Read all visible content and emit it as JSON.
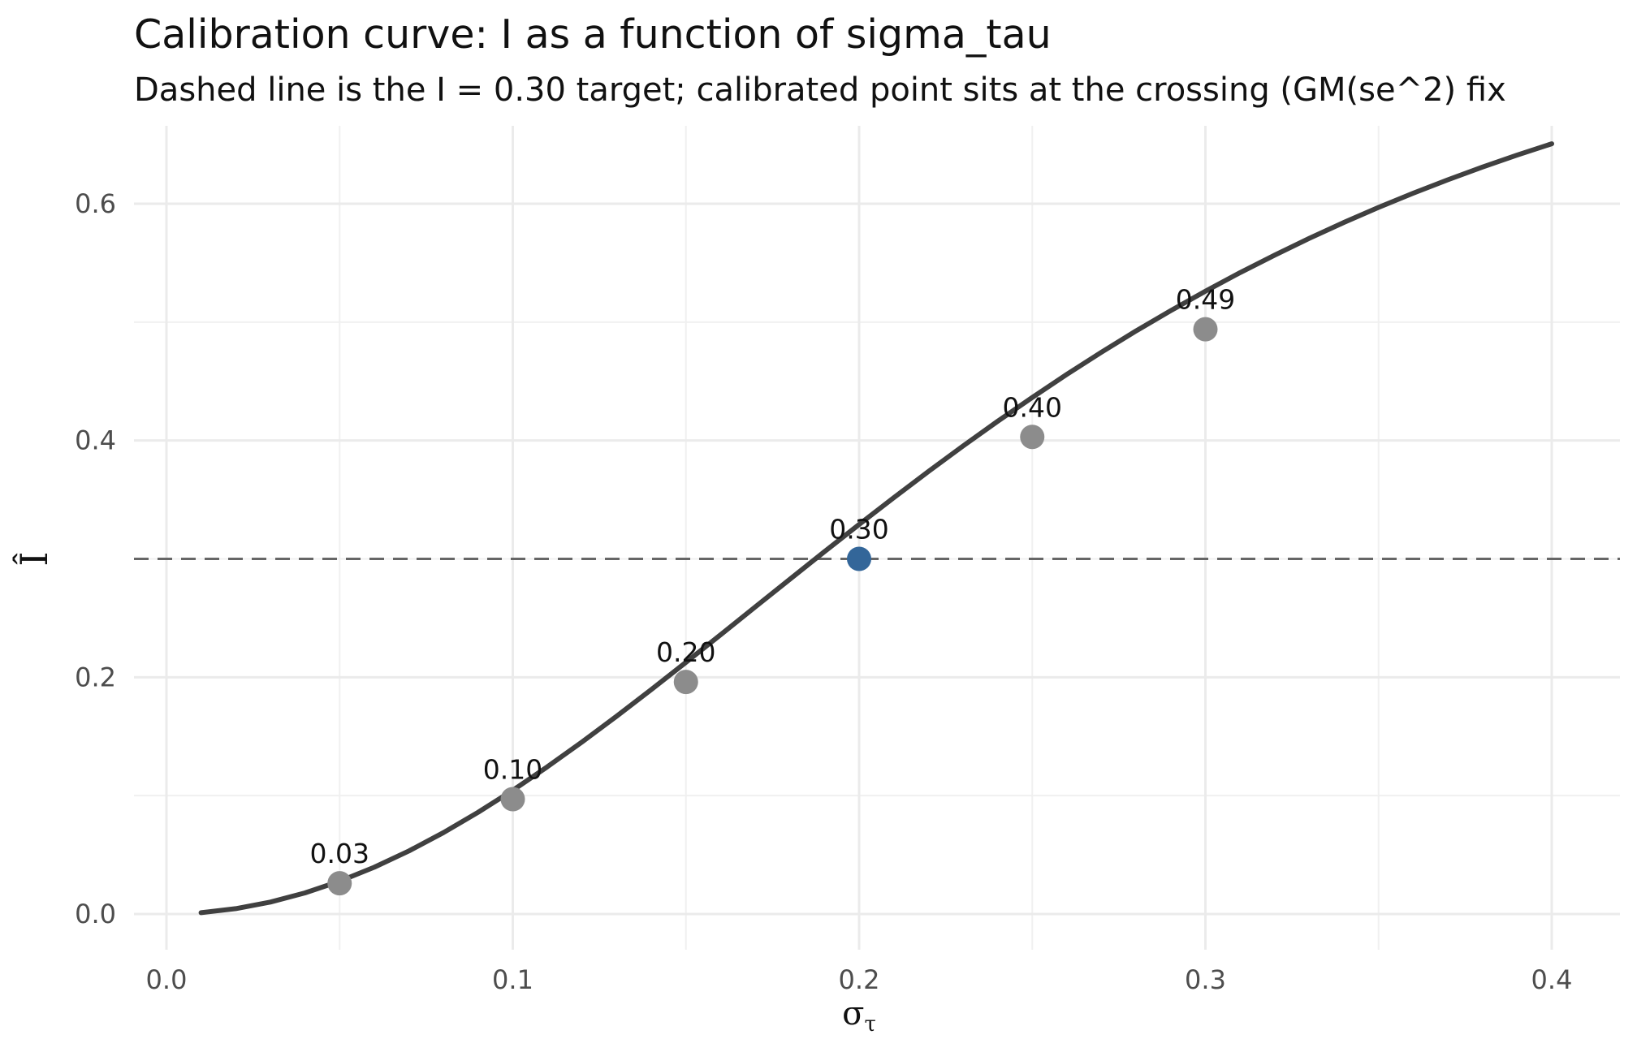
{
  "title": "Calibration curve: I as a function of sigma_tau",
  "subtitle": "Dashed line is the I = 0.30 target; calibrated point sits at the crossing (GM(se^2) fix",
  "chart_data": {
    "type": "line",
    "xlabel": "σ",
    "xlabel_sub": "τ",
    "ylabel": "Î",
    "xlim": [
      -0.005,
      0.41
    ],
    "ylim": [
      -0.03,
      0.66
    ],
    "x_ticks": [
      0.0,
      0.1,
      0.2,
      0.3,
      0.4
    ],
    "x_tick_labels": [
      "0.0",
      "0.1",
      "0.2",
      "0.3",
      "0.4"
    ],
    "y_ticks": [
      0.0,
      0.2,
      0.4,
      0.6
    ],
    "y_tick_labels": [
      "0.0",
      "0.2",
      "0.4",
      "0.6"
    ],
    "grid": true,
    "target_line": {
      "y": 0.3,
      "style": "dashed",
      "color": "#666666"
    },
    "curve": {
      "color": "#404040",
      "x": [
        0.01,
        0.02,
        0.03,
        0.04,
        0.05,
        0.06,
        0.07,
        0.08,
        0.09,
        0.1,
        0.11,
        0.12,
        0.13,
        0.14,
        0.15,
        0.16,
        0.17,
        0.18,
        0.19,
        0.2,
        0.21,
        0.22,
        0.23,
        0.24,
        0.25,
        0.26,
        0.27,
        0.28,
        0.29,
        0.3,
        0.31,
        0.32,
        0.33,
        0.34,
        0.35,
        0.36,
        0.37,
        0.38,
        0.39,
        0.4
      ],
      "y": [
        0.0011,
        0.0045,
        0.0101,
        0.0178,
        0.0277,
        0.0395,
        0.0533,
        0.0688,
        0.0859,
        0.1045,
        0.1244,
        0.1453,
        0.1671,
        0.1896,
        0.2126,
        0.2359,
        0.2594,
        0.2828,
        0.3061,
        0.3291,
        0.3517,
        0.3738,
        0.3953,
        0.4162,
        0.4364,
        0.4559,
        0.4746,
        0.4926,
        0.5097,
        0.5261,
        0.5418,
        0.5566,
        0.5708,
        0.5842,
        0.5969,
        0.6089,
        0.6202,
        0.631,
        0.6411,
        0.6507
      ]
    },
    "points": [
      {
        "x": 0.05,
        "y": 0.026,
        "label": "0.03",
        "color": "#8c8c8c"
      },
      {
        "x": 0.1,
        "y": 0.097,
        "label": "0.10",
        "color": "#8c8c8c"
      },
      {
        "x": 0.15,
        "y": 0.196,
        "label": "0.20",
        "color": "#8c8c8c"
      },
      {
        "x": 0.2,
        "y": 0.3,
        "label": "0.30",
        "color": "#336699",
        "calibrated": true
      },
      {
        "x": 0.25,
        "y": 0.403,
        "label": "0.40",
        "color": "#8c8c8c"
      },
      {
        "x": 0.3,
        "y": 0.494,
        "label": "0.49",
        "color": "#8c8c8c"
      }
    ]
  }
}
